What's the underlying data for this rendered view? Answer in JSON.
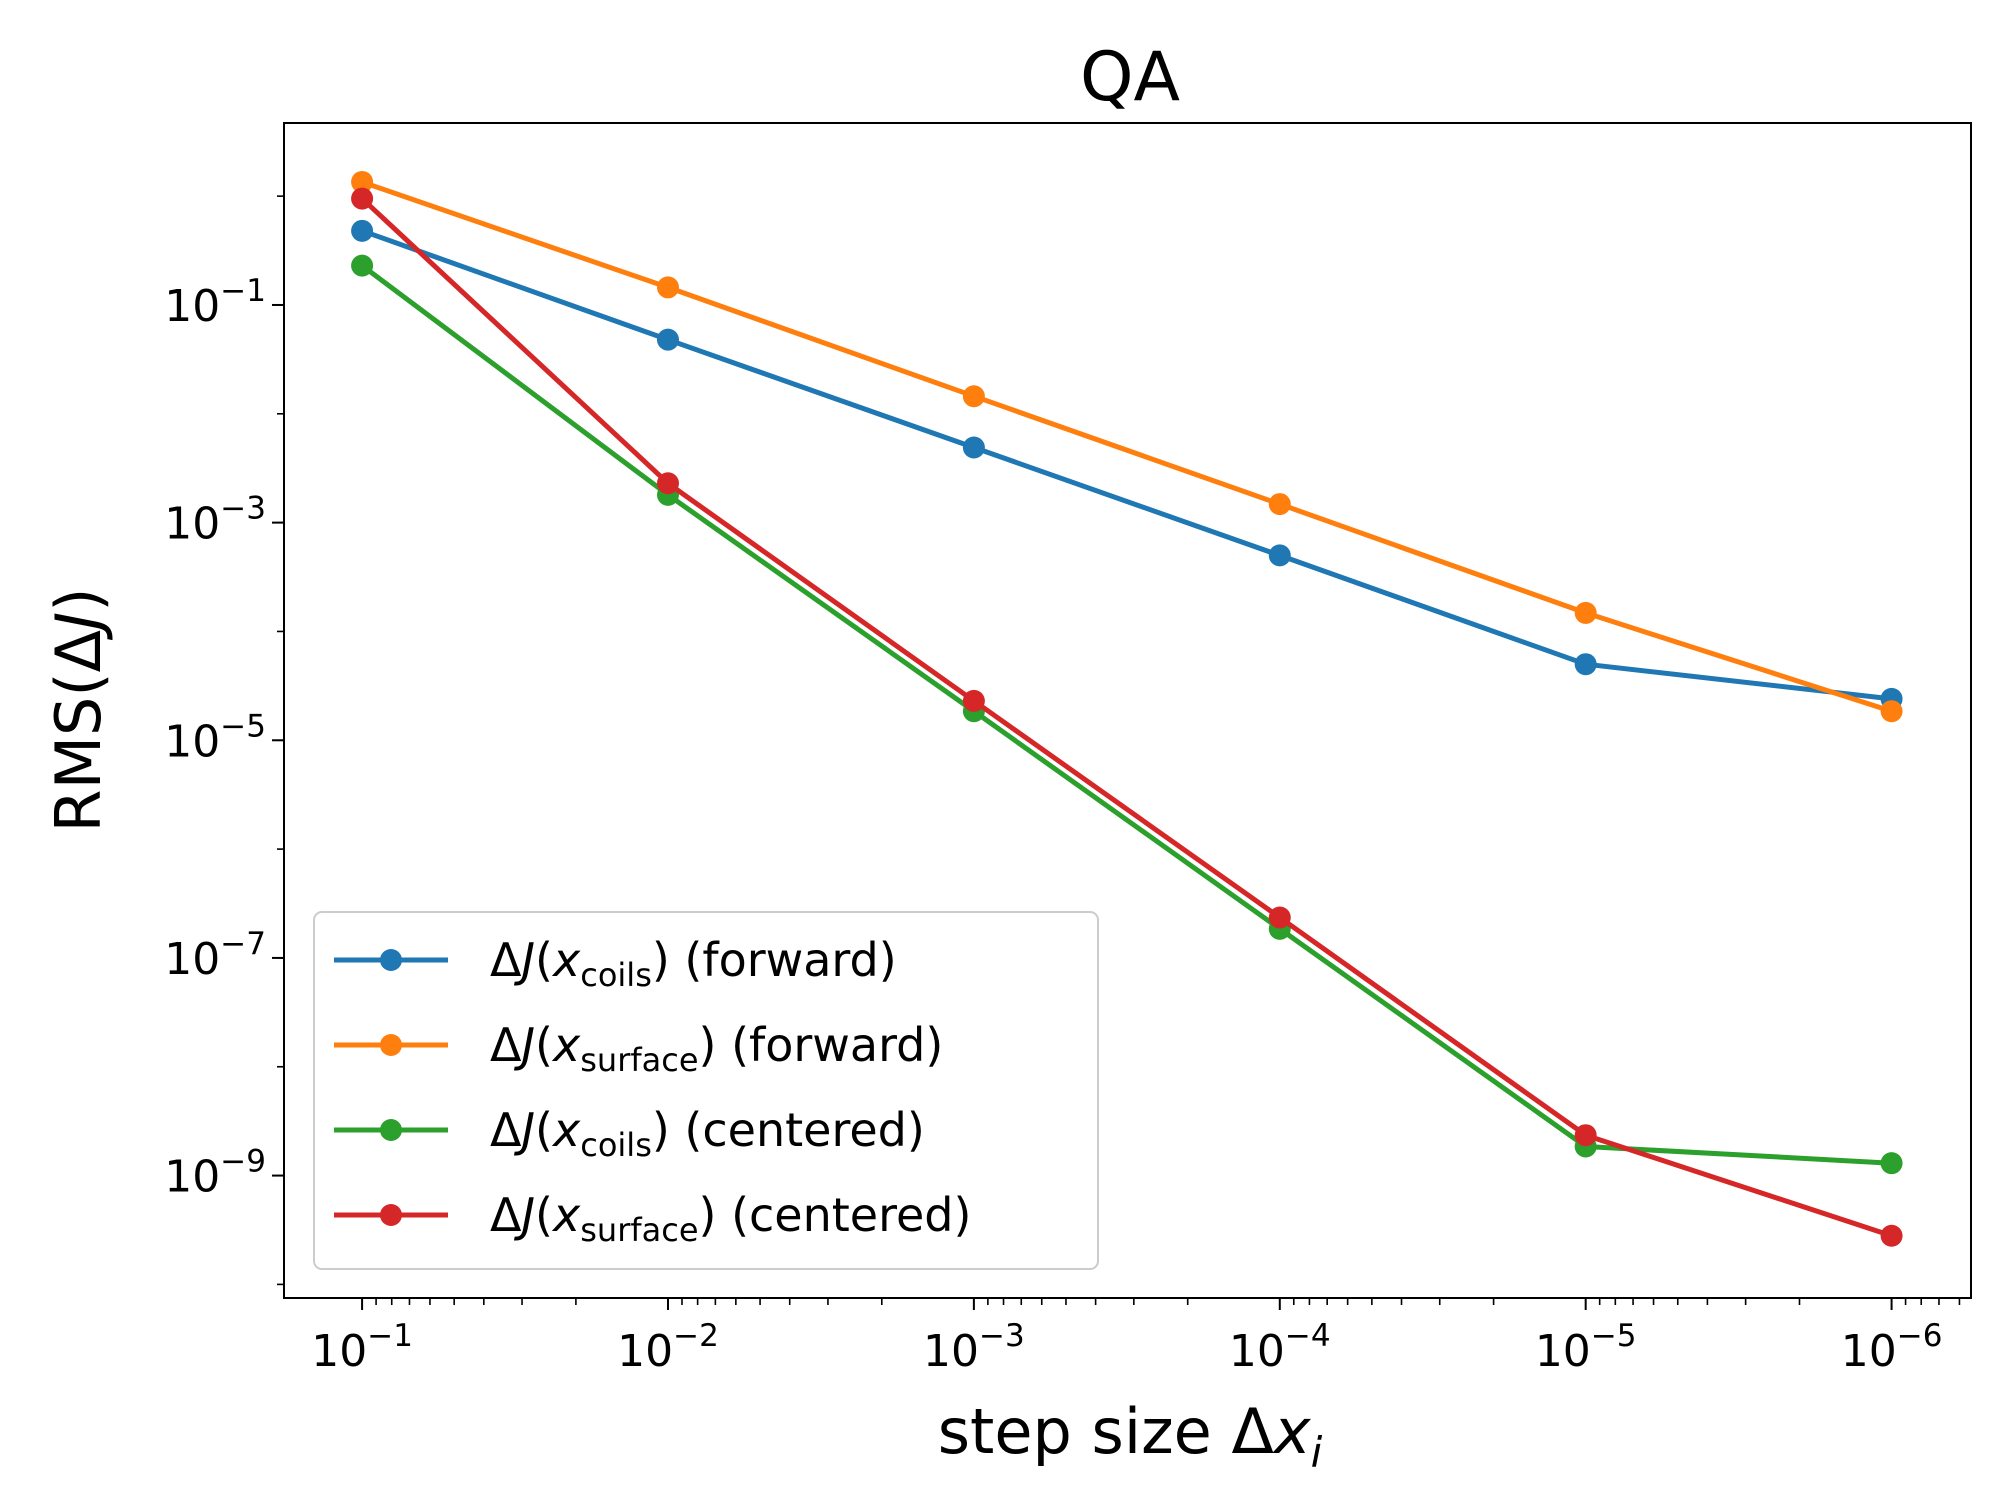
{
  "chart_data": {
    "type": "line",
    "title": "QA",
    "xlabel": {
      "main": "step size Δ",
      "var": "x",
      "sub": "i"
    },
    "ylabel": {
      "main": "RMS(Δ",
      "var": "J",
      "close": ")"
    },
    "x_scale": "log",
    "y_scale": "log",
    "x_inverted": true,
    "xlim": [
      0.18,
      5.5e-07
    ],
    "ylim": [
      7.5e-11,
      4.7
    ],
    "x_ticks": [
      {
        "value": 0.1,
        "base": "10",
        "exp": "−1"
      },
      {
        "value": 0.01,
        "base": "10",
        "exp": "−2"
      },
      {
        "value": 0.001,
        "base": "10",
        "exp": "−3"
      },
      {
        "value": 0.0001,
        "base": "10",
        "exp": "−4"
      },
      {
        "value": 1e-05,
        "base": "10",
        "exp": "−5"
      },
      {
        "value": 1e-06,
        "base": "10",
        "exp": "−6"
      }
    ],
    "y_ticks": [
      {
        "value": 0.1,
        "base": "10",
        "exp": "−1"
      },
      {
        "value": 0.001,
        "base": "10",
        "exp": "−3"
      },
      {
        "value": 1e-05,
        "base": "10",
        "exp": "−5"
      },
      {
        "value": 1e-07,
        "base": "10",
        "exp": "−7"
      },
      {
        "value": 1e-09,
        "base": "10",
        "exp": "−9"
      }
    ],
    "x": [
      0.1,
      0.01,
      0.001,
      0.0001,
      1e-05,
      1e-06
    ],
    "series": [
      {
        "name": "ΔJ(x_coils) (forward)",
        "label": {
          "pre": "Δ",
          "J": "J",
          "open": "(",
          "x": "x",
          "sub": "coils",
          "post": ") (forward)"
        },
        "color": "#1f77b4",
        "values": [
          0.48,
          0.048,
          0.0049,
          0.0005,
          5e-05,
          2.4e-05
        ]
      },
      {
        "name": "ΔJ(x_surface) (forward)",
        "label": {
          "pre": "Δ",
          "J": "J",
          "open": "(",
          "x": "x",
          "sub": "surface",
          "post": ") (forward)"
        },
        "color": "#ff7f0e",
        "values": [
          1.35,
          0.145,
          0.0145,
          0.00148,
          0.000148,
          1.85e-05
        ]
      },
      {
        "name": "ΔJ(x_coils) (centered)",
        "label": {
          "pre": "Δ",
          "J": "J",
          "open": "(",
          "x": "x",
          "sub": "coils",
          "post": ") (centered)"
        },
        "color": "#2ca02c",
        "values": [
          0.23,
          0.0018,
          1.85e-05,
          1.85e-07,
          1.85e-09,
          1.3e-09
        ]
      },
      {
        "name": "ΔJ(x_surface) (centered)",
        "label": {
          "pre": "Δ",
          "J": "J",
          "open": "(",
          "x": "x",
          "sub": "surface",
          "post": ") (centered)"
        },
        "color": "#d62728",
        "values": [
          0.95,
          0.0023,
          2.3e-05,
          2.35e-07,
          2.35e-09,
          2.8e-10
        ]
      }
    ],
    "grid": false,
    "legend": "lower-left"
  }
}
